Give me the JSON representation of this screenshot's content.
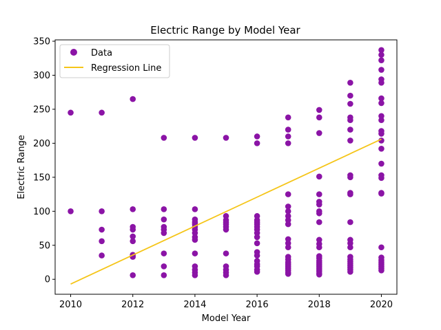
{
  "chart_data": {
    "type": "scatter",
    "title": "Electric Range by Model Year",
    "xlabel": "Model Year",
    "ylabel": "Electric Range",
    "xlim": [
      2009.5,
      2020.5
    ],
    "ylim": [
      -22,
      352
    ],
    "xticks": [
      2010,
      2012,
      2014,
      2016,
      2018,
      2020
    ],
    "yticks": [
      0,
      50,
      100,
      150,
      200,
      250,
      300,
      350
    ],
    "grid": false,
    "legend": {
      "placement": "top-left",
      "entries": [
        "Data",
        "Regression Line"
      ]
    },
    "colors": {
      "points": "#8b14a6",
      "regression": "#f5c518"
    },
    "series": [
      {
        "name": "Data",
        "points": [
          [
            2010,
            245
          ],
          [
            2010,
            100
          ],
          [
            2011,
            245
          ],
          [
            2011,
            100
          ],
          [
            2011,
            73
          ],
          [
            2011,
            56
          ],
          [
            2011,
            35
          ],
          [
            2012,
            265
          ],
          [
            2012,
            103
          ],
          [
            2012,
            77
          ],
          [
            2012,
            73
          ],
          [
            2012,
            63
          ],
          [
            2012,
            56
          ],
          [
            2012,
            36
          ],
          [
            2012,
            33
          ],
          [
            2012,
            6
          ],
          [
            2013,
            208
          ],
          [
            2013,
            103
          ],
          [
            2013,
            88
          ],
          [
            2013,
            77
          ],
          [
            2013,
            73
          ],
          [
            2013,
            68
          ],
          [
            2013,
            38
          ],
          [
            2013,
            19
          ],
          [
            2013,
            6
          ],
          [
            2014,
            208
          ],
          [
            2014,
            103
          ],
          [
            2014,
            88
          ],
          [
            2014,
            84
          ],
          [
            2014,
            81
          ],
          [
            2014,
            77
          ],
          [
            2014,
            73
          ],
          [
            2014,
            68
          ],
          [
            2014,
            62
          ],
          [
            2014,
            58
          ],
          [
            2014,
            38
          ],
          [
            2014,
            19
          ],
          [
            2014,
            14
          ],
          [
            2014,
            10
          ],
          [
            2014,
            6
          ],
          [
            2015,
            208
          ],
          [
            2015,
            93
          ],
          [
            2015,
            87
          ],
          [
            2015,
            84
          ],
          [
            2015,
            81
          ],
          [
            2015,
            77
          ],
          [
            2015,
            73
          ],
          [
            2015,
            38
          ],
          [
            2015,
            19
          ],
          [
            2015,
            14
          ],
          [
            2015,
            10
          ],
          [
            2015,
            6
          ],
          [
            2016,
            210
          ],
          [
            2016,
            200
          ],
          [
            2016,
            93
          ],
          [
            2016,
            87
          ],
          [
            2016,
            84
          ],
          [
            2016,
            81
          ],
          [
            2016,
            77
          ],
          [
            2016,
            73
          ],
          [
            2016,
            68
          ],
          [
            2016,
            62
          ],
          [
            2016,
            53
          ],
          [
            2016,
            40
          ],
          [
            2016,
            35
          ],
          [
            2016,
            27
          ],
          [
            2016,
            22
          ],
          [
            2016,
            19
          ],
          [
            2016,
            14
          ],
          [
            2016,
            11
          ],
          [
            2017,
            238
          ],
          [
            2017,
            220
          ],
          [
            2017,
            210
          ],
          [
            2017,
            200
          ],
          [
            2017,
            125
          ],
          [
            2017,
            107
          ],
          [
            2017,
            100
          ],
          [
            2017,
            93
          ],
          [
            2017,
            87
          ],
          [
            2017,
            81
          ],
          [
            2017,
            59
          ],
          [
            2017,
            53
          ],
          [
            2017,
            47
          ],
          [
            2017,
            33
          ],
          [
            2017,
            29
          ],
          [
            2017,
            25
          ],
          [
            2017,
            22
          ],
          [
            2017,
            19
          ],
          [
            2017,
            16
          ],
          [
            2017,
            13
          ],
          [
            2017,
            10
          ],
          [
            2017,
            8
          ],
          [
            2018,
            249
          ],
          [
            2018,
            238
          ],
          [
            2018,
            215
          ],
          [
            2018,
            151
          ],
          [
            2018,
            125
          ],
          [
            2018,
            114
          ],
          [
            2018,
            110
          ],
          [
            2018,
            100
          ],
          [
            2018,
            97
          ],
          [
            2018,
            84
          ],
          [
            2018,
            58
          ],
          [
            2018,
            52
          ],
          [
            2018,
            47
          ],
          [
            2018,
            34
          ],
          [
            2018,
            31
          ],
          [
            2018,
            27
          ],
          [
            2018,
            24
          ],
          [
            2018,
            21
          ],
          [
            2018,
            18
          ],
          [
            2018,
            15
          ],
          [
            2018,
            12
          ],
          [
            2018,
            9
          ],
          [
            2018,
            7
          ],
          [
            2019,
            289
          ],
          [
            2019,
            270
          ],
          [
            2019,
            258
          ],
          [
            2019,
            238
          ],
          [
            2019,
            234
          ],
          [
            2019,
            220
          ],
          [
            2019,
            204
          ],
          [
            2019,
            153
          ],
          [
            2019,
            150
          ],
          [
            2019,
            127
          ],
          [
            2019,
            125
          ],
          [
            2019,
            84
          ],
          [
            2019,
            58
          ],
          [
            2019,
            53
          ],
          [
            2019,
            47
          ],
          [
            2019,
            33
          ],
          [
            2019,
            29
          ],
          [
            2019,
            26
          ],
          [
            2019,
            23
          ],
          [
            2019,
            20
          ],
          [
            2019,
            17
          ],
          [
            2019,
            14
          ],
          [
            2019,
            11
          ],
          [
            2020,
            337
          ],
          [
            2020,
            330
          ],
          [
            2020,
            322
          ],
          [
            2020,
            308
          ],
          [
            2020,
            294
          ],
          [
            2020,
            289
          ],
          [
            2020,
            266
          ],
          [
            2020,
            259
          ],
          [
            2020,
            240
          ],
          [
            2020,
            234
          ],
          [
            2020,
            218
          ],
          [
            2020,
            214
          ],
          [
            2020,
            204
          ],
          [
            2020,
            192
          ],
          [
            2020,
            170
          ],
          [
            2020,
            153
          ],
          [
            2020,
            149
          ],
          [
            2020,
            127
          ],
          [
            2020,
            126
          ],
          [
            2020,
            47
          ],
          [
            2020,
            32
          ],
          [
            2020,
            28
          ],
          [
            2020,
            25
          ],
          [
            2020,
            22
          ],
          [
            2020,
            19
          ],
          [
            2020,
            16
          ],
          [
            2020,
            13
          ]
        ]
      },
      {
        "name": "Regression Line",
        "line": [
          [
            2010,
            -7
          ],
          [
            2020,
            206
          ]
        ]
      }
    ]
  }
}
